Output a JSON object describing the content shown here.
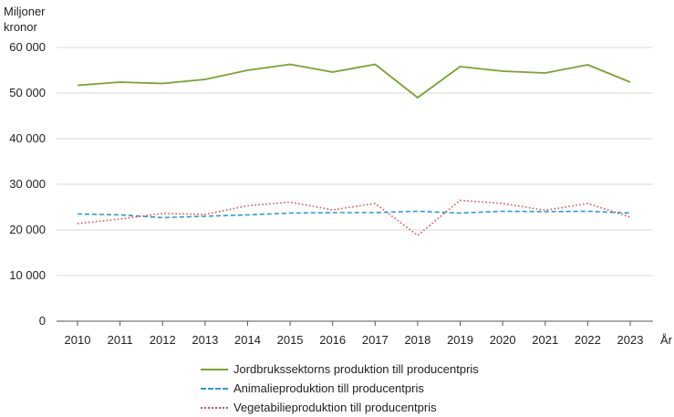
{
  "unit_label": {
    "line1": "Miljoner",
    "line2": "kronor"
  },
  "x_axis_label": "År",
  "colors": {
    "total": "#7aa32f",
    "animal": "#2a9bd4",
    "vegetable": "#e0474c",
    "grid": "#d9d9d9"
  },
  "chart_data": {
    "type": "line",
    "x": [
      "2010",
      "2011",
      "2012",
      "2013",
      "2014",
      "2015",
      "2016",
      "2017",
      "2018",
      "2019",
      "2020",
      "2021",
      "2022",
      "2023"
    ],
    "xlabel": "År",
    "ylabel": "Miljoner kronor",
    "ylim": [
      0,
      60000
    ],
    "yticks": [
      0,
      10000,
      20000,
      30000,
      40000,
      50000,
      60000
    ],
    "ytick_labels": [
      "0",
      "10 000",
      "20 000",
      "30 000",
      "40 000",
      "50 000",
      "60 000"
    ],
    "grid": true,
    "legend_position": "bottom",
    "series": [
      {
        "name": "Jordbrukssektorns produktion till producentpris",
        "style": "solid",
        "values": [
          51700,
          52400,
          52100,
          53000,
          55000,
          56300,
          54600,
          56300,
          49000,
          55800,
          54800,
          54400,
          56200,
          52400
        ]
      },
      {
        "name": "Animalieproduktion till producentpris",
        "style": "dashed",
        "values": [
          23500,
          23300,
          22700,
          23000,
          23300,
          23700,
          23800,
          23800,
          24100,
          23700,
          24100,
          24000,
          24100,
          23700
        ]
      },
      {
        "name": "Vegetabilieproduktion till producentpris",
        "style": "dotted",
        "values": [
          21400,
          22400,
          23600,
          23400,
          25300,
          26100,
          24400,
          25800,
          18800,
          26500,
          25800,
          24300,
          25800,
          22800
        ]
      }
    ]
  }
}
